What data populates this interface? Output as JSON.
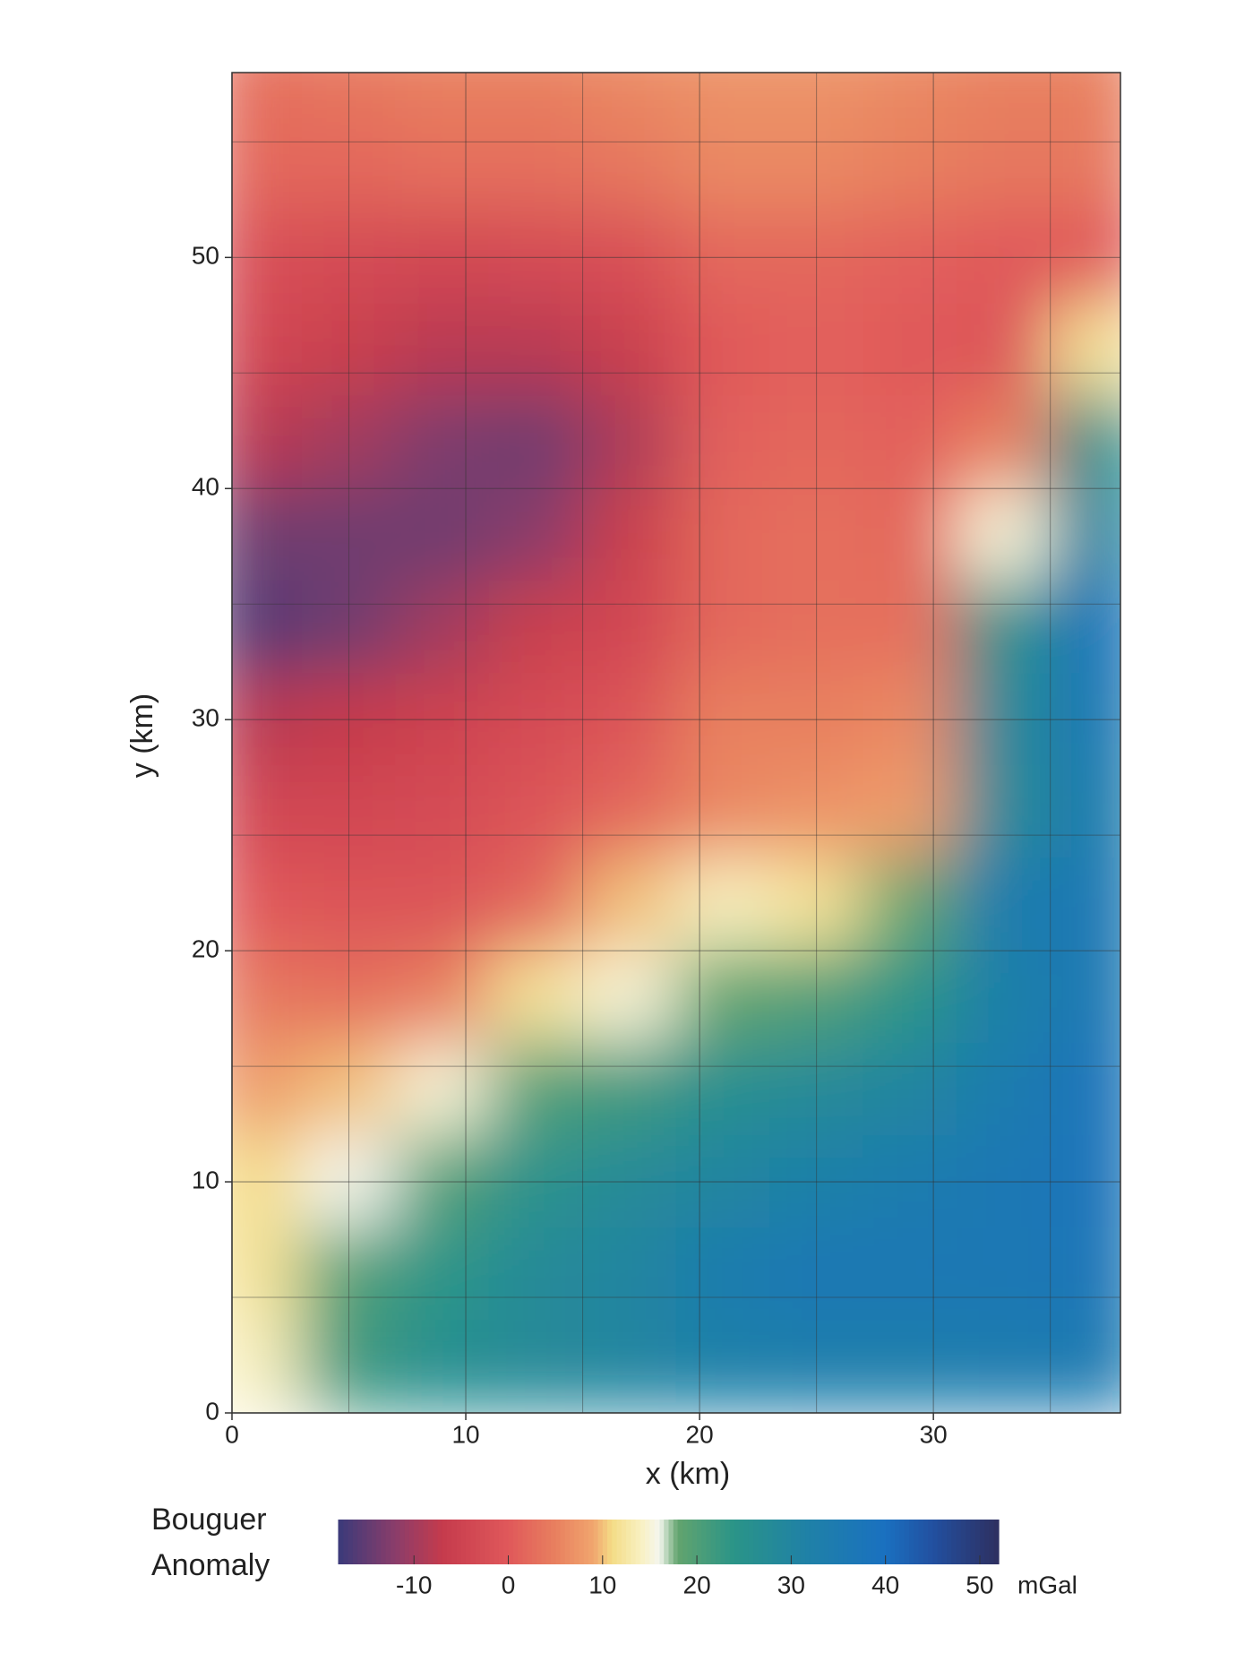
{
  "chart_data": {
    "type": "heatmap",
    "xlabel": "x (km)",
    "ylabel": "y (km)",
    "xlim": [
      0,
      38
    ],
    "ylim": [
      0,
      58
    ],
    "xticks": [
      0,
      10,
      20,
      30
    ],
    "yticks": [
      0,
      10,
      20,
      30,
      40,
      50
    ],
    "minor_xticks": [
      5,
      15,
      25,
      35
    ],
    "minor_yticks": [
      5,
      15,
      25,
      35,
      45,
      55
    ],
    "grid": true,
    "x": [
      1,
      5,
      9,
      13,
      17,
      21,
      25,
      29,
      33,
      37
    ],
    "y": [
      58,
      54,
      50,
      46,
      42,
      38,
      34,
      30,
      26,
      22,
      18,
      14,
      10,
      6,
      2
    ],
    "values": [
      [
        3,
        4,
        5,
        5,
        6,
        7,
        7,
        6,
        5,
        5
      ],
      [
        2,
        2,
        3,
        3,
        4,
        6,
        6,
        5,
        4,
        4
      ],
      [
        -2,
        -3,
        -4,
        -3,
        -2,
        2,
        2,
        1,
        0,
        0
      ],
      [
        -4,
        -6,
        -8,
        -8,
        -6,
        0,
        1,
        0,
        -1,
        12
      ],
      [
        -8,
        -10,
        -13,
        -14,
        -9,
        1,
        2,
        1,
        5,
        25
      ],
      [
        -14,
        -14,
        -14,
        -12,
        -6,
        2,
        3,
        2,
        15,
        30
      ],
      [
        -16,
        -14,
        -10,
        -6,
        -4,
        2,
        3,
        3,
        25,
        38
      ],
      [
        -8,
        -7,
        -5,
        -3,
        -1,
        5,
        5,
        6,
        28,
        36
      ],
      [
        -4,
        -4,
        -3,
        -1,
        2,
        6,
        7,
        8,
        28,
        34
      ],
      [
        0,
        -1,
        -1,
        2,
        10,
        14,
        12,
        18,
        34,
        36
      ],
      [
        4,
        3,
        5,
        12,
        15,
        18,
        20,
        24,
        32,
        36
      ],
      [
        8,
        10,
        15,
        20,
        22,
        26,
        28,
        30,
        34,
        38
      ],
      [
        11,
        16,
        20,
        25,
        28,
        30,
        32,
        34,
        36,
        38
      ],
      [
        12,
        20,
        24,
        28,
        30,
        34,
        36,
        36,
        36,
        37
      ],
      [
        14,
        22,
        26,
        28,
        30,
        32,
        33,
        33,
        34,
        35
      ]
    ],
    "colorbar": {
      "title": [
        "Bouguer",
        "Anomaly"
      ],
      "unit": "mGal",
      "clim": [
        -18,
        52
      ],
      "ticks": [
        -10,
        0,
        10,
        20,
        30,
        40,
        50
      ],
      "colorscale": [
        {
          "value": -18,
          "color": "#3b3a7a"
        },
        {
          "value": -12,
          "color": "#8a3d6a"
        },
        {
          "value": -7,
          "color": "#c53b4c"
        },
        {
          "value": 0,
          "color": "#e0585a"
        },
        {
          "value": 5,
          "color": "#e8805f"
        },
        {
          "value": 9,
          "color": "#f0a56e"
        },
        {
          "value": 11,
          "color": "#f4dc86"
        },
        {
          "value": 14,
          "color": "#f8f0c0"
        },
        {
          "value": 16,
          "color": "#f4f6ee"
        },
        {
          "value": 18,
          "color": "#62a46e"
        },
        {
          "value": 24,
          "color": "#2a9488"
        },
        {
          "value": 32,
          "color": "#1f80a8"
        },
        {
          "value": 40,
          "color": "#1a70c0"
        },
        {
          "value": 45,
          "color": "#2250a0"
        },
        {
          "value": 52,
          "color": "#2e2f60"
        }
      ]
    }
  }
}
